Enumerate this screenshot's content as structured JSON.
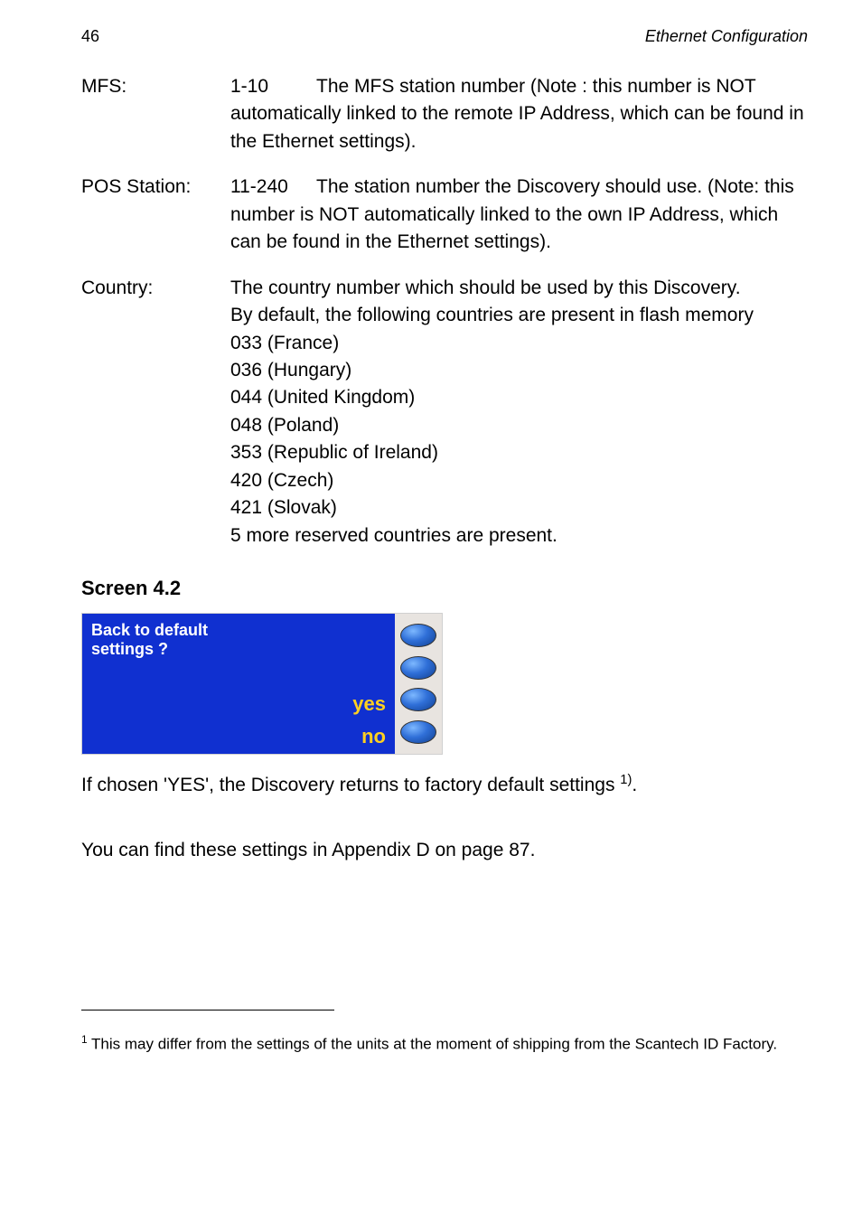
{
  "header": {
    "page_number": "46",
    "section_title": "Ethernet Configuration"
  },
  "definitions": [
    {
      "label": "MFS:",
      "range": "1-10",
      "body": "The MFS station number (Note : this number is NOT automatically linked to the remote IP Address, which can be found in the Ethernet settings)."
    },
    {
      "label": "POS Station:",
      "range": "11-240",
      "body": "The station number the Discovery should use. (Note: this number is NOT automatically linked to the own IP Address, which can be found in the Ethernet settings)."
    },
    {
      "label": "Country:",
      "lines": [
        "The country number which should be used by this Discovery.",
        "By default, the following countries are present in flash memory",
        "033 (France)",
        "036 (Hungary)",
        "044 (United Kingdom)",
        "048 (Poland)",
        "353 (Republic of Ireland)",
        "420 (Czech)",
        "421 (Slovak)",
        "5 more reserved countries are present."
      ]
    }
  ],
  "screen": {
    "heading": "Screen 4.2",
    "prompt_line1": "Back to default",
    "prompt_line2": "settings ?",
    "option_yes": "yes",
    "option_no": "no",
    "bg_color": "#1030d0",
    "text_color": "#ffffff",
    "option_color": "#ffd020"
  },
  "after": {
    "line1_pre": "If chosen 'YES', the Discovery returns to factory default settings ",
    "line1_sup": "1)",
    "line1_post": ".",
    "line2": "You can find these settings in Appendix D on page 87."
  },
  "footnote": {
    "marker": "1",
    "text": " This may differ from the settings of the units at the moment of shipping from the Scantech ID Factory."
  }
}
